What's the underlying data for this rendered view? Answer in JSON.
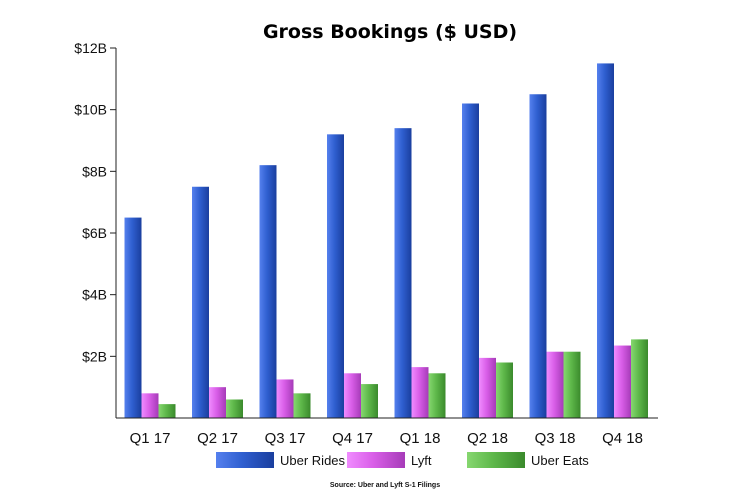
{
  "chart_data": {
    "type": "bar",
    "title": "Gross Bookings ($ USD)",
    "source": "Source: Uber and Lyft S-1 Filings",
    "categories": [
      "Q1 17",
      "Q2 17",
      "Q3 17",
      "Q4 17",
      "Q1 18",
      "Q2 18",
      "Q3 18",
      "Q4 18"
    ],
    "y_ticks": [
      "$12B",
      "$10B",
      "$8B",
      "$6B",
      "$4B",
      "$2B"
    ],
    "ylim": [
      0,
      12
    ],
    "grid": false,
    "legend_position": "bottom",
    "series": [
      {
        "name": "Uber Rides",
        "color": "#2f5fd0",
        "values": [
          6.5,
          7.5,
          8.2,
          9.2,
          9.4,
          10.2,
          10.5,
          11.5
        ]
      },
      {
        "name": "Lyft",
        "color": "#d95ee8",
        "values": [
          0.8,
          1.0,
          1.25,
          1.45,
          1.65,
          1.95,
          2.15,
          2.35
        ]
      },
      {
        "name": "Uber Eats",
        "color": "#5eb84a",
        "values": [
          0.45,
          0.6,
          0.8,
          1.1,
          1.45,
          1.8,
          2.15,
          2.55
        ]
      }
    ]
  }
}
